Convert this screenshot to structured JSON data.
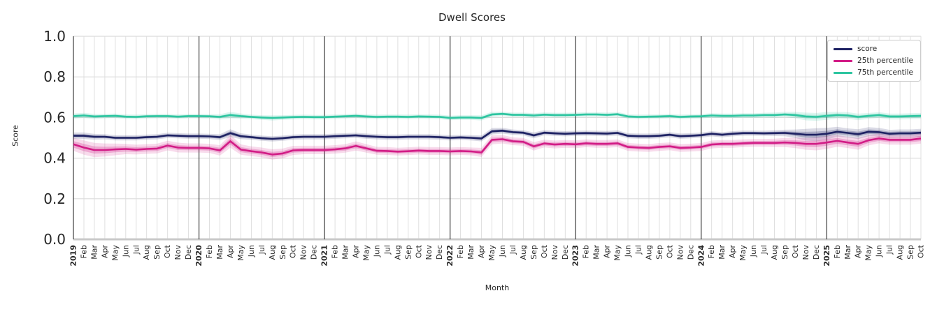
{
  "title": "Dwell Scores",
  "axes": {
    "xlabel": "Month",
    "ylabel": "Score",
    "yticks": [
      "0.0",
      "0.2",
      "0.4",
      "0.6",
      "0.8",
      "1.0"
    ],
    "ylim": [
      0.0,
      1.0
    ]
  },
  "legend": {
    "position": "upper right",
    "items": [
      {
        "label": "score",
        "color": "#1e2263"
      },
      {
        "label": "25th percentile",
        "color": "#d21c86"
      },
      {
        "label": "75th percentile",
        "color": "#2dc5a0"
      }
    ]
  },
  "chart_data": {
    "type": "line",
    "title": "Dwell Scores",
    "xlabel": "Month",
    "ylabel": "Score",
    "ylim": [
      0.0,
      1.0
    ],
    "grid": true,
    "x_range": "2019-01 to 2025-10",
    "tick_labels": [
      "2019",
      "Feb",
      "Mar",
      "Apr",
      "May",
      "Jun",
      "Jul",
      "Aug",
      "Sep",
      "Oct",
      "Nov",
      "Dec",
      "2020",
      "Feb",
      "Mar",
      "Apr",
      "May",
      "Jun",
      "Jul",
      "Aug",
      "Sep",
      "Oct",
      "Nov",
      "Dec",
      "2021",
      "Feb",
      "Mar",
      "Apr",
      "May",
      "Jun",
      "Jul",
      "Aug",
      "Sep",
      "Oct",
      "Nov",
      "Dec",
      "2022",
      "Feb",
      "Mar",
      "Apr",
      "May",
      "Jun",
      "Jul",
      "Aug",
      "Sep",
      "Oct",
      "Nov",
      "Dec",
      "2023",
      "Feb",
      "Mar",
      "Apr",
      "May",
      "Jun",
      "Jul",
      "Aug",
      "Sep",
      "Oct",
      "Nov",
      "Dec",
      "2024",
      "Feb",
      "Mar",
      "Apr",
      "May",
      "Jun",
      "Jul",
      "Aug",
      "Sep",
      "Oct",
      "Nov",
      "Dec",
      "2025",
      "Feb",
      "Mar",
      "Apr",
      "May",
      "Jun",
      "Jul",
      "Aug",
      "Sep",
      "Oct"
    ],
    "series": [
      {
        "name": "score",
        "color": "#1e2263",
        "values": [
          0.51,
          0.51,
          0.505,
          0.505,
          0.5,
          0.5,
          0.5,
          0.503,
          0.505,
          0.512,
          0.51,
          0.508,
          0.508,
          0.507,
          0.503,
          0.523,
          0.508,
          0.503,
          0.498,
          0.495,
          0.498,
          0.503,
          0.505,
          0.505,
          0.505,
          0.508,
          0.51,
          0.512,
          0.508,
          0.505,
          0.503,
          0.503,
          0.505,
          0.505,
          0.505,
          0.503,
          0.5,
          0.502,
          0.5,
          0.497,
          0.532,
          0.535,
          0.528,
          0.525,
          0.512,
          0.525,
          0.522,
          0.52,
          0.522,
          0.523,
          0.522,
          0.521,
          0.524,
          0.51,
          0.508,
          0.508,
          0.51,
          0.515,
          0.508,
          0.51,
          0.513,
          0.52,
          0.515,
          0.52,
          0.523,
          0.523,
          0.522,
          0.523,
          0.524,
          0.52,
          0.515,
          0.515,
          0.52,
          0.53,
          0.524,
          0.518,
          0.53,
          0.528,
          0.52,
          0.522,
          0.522,
          0.525
        ],
        "band": [
          0.01,
          0.01,
          0.009,
          0.008,
          0.008,
          0.008,
          0.008,
          0.008,
          0.008,
          0.008,
          0.008,
          0.008,
          0.008,
          0.008,
          0.009,
          0.012,
          0.009,
          0.008,
          0.008,
          0.008,
          0.008,
          0.008,
          0.008,
          0.008,
          0.008,
          0.008,
          0.008,
          0.008,
          0.008,
          0.008,
          0.008,
          0.008,
          0.008,
          0.008,
          0.008,
          0.008,
          0.008,
          0.008,
          0.008,
          0.009,
          0.01,
          0.009,
          0.008,
          0.008,
          0.009,
          0.008,
          0.008,
          0.008,
          0.008,
          0.008,
          0.008,
          0.008,
          0.008,
          0.008,
          0.008,
          0.008,
          0.008,
          0.008,
          0.008,
          0.008,
          0.008,
          0.008,
          0.008,
          0.008,
          0.008,
          0.008,
          0.008,
          0.009,
          0.01,
          0.013,
          0.018,
          0.02,
          0.018,
          0.015,
          0.014,
          0.015,
          0.014,
          0.013,
          0.012,
          0.012,
          0.012,
          0.012
        ]
      },
      {
        "name": "25th percentile",
        "color": "#d21c86",
        "values": [
          0.468,
          0.452,
          0.44,
          0.44,
          0.443,
          0.445,
          0.442,
          0.445,
          0.447,
          0.462,
          0.452,
          0.45,
          0.45,
          0.448,
          0.438,
          0.483,
          0.442,
          0.434,
          0.428,
          0.418,
          0.423,
          0.438,
          0.44,
          0.44,
          0.44,
          0.443,
          0.448,
          0.46,
          0.448,
          0.436,
          0.435,
          0.432,
          0.434,
          0.437,
          0.435,
          0.435,
          0.433,
          0.435,
          0.433,
          0.428,
          0.49,
          0.493,
          0.483,
          0.48,
          0.458,
          0.472,
          0.467,
          0.47,
          0.468,
          0.473,
          0.47,
          0.47,
          0.473,
          0.455,
          0.452,
          0.45,
          0.455,
          0.458,
          0.45,
          0.452,
          0.455,
          0.467,
          0.47,
          0.47,
          0.473,
          0.475,
          0.475,
          0.475,
          0.477,
          0.475,
          0.47,
          0.47,
          0.477,
          0.485,
          0.477,
          0.47,
          0.488,
          0.497,
          0.49,
          0.49,
          0.49,
          0.497
        ],
        "band": [
          0.02,
          0.022,
          0.022,
          0.02,
          0.018,
          0.016,
          0.015,
          0.015,
          0.015,
          0.015,
          0.015,
          0.014,
          0.014,
          0.014,
          0.016,
          0.02,
          0.016,
          0.015,
          0.015,
          0.016,
          0.015,
          0.014,
          0.013,
          0.013,
          0.013,
          0.013,
          0.013,
          0.014,
          0.013,
          0.012,
          0.012,
          0.012,
          0.012,
          0.012,
          0.012,
          0.012,
          0.012,
          0.012,
          0.012,
          0.014,
          0.014,
          0.013,
          0.012,
          0.012,
          0.013,
          0.012,
          0.012,
          0.012,
          0.012,
          0.012,
          0.012,
          0.012,
          0.012,
          0.012,
          0.012,
          0.012,
          0.012,
          0.012,
          0.012,
          0.012,
          0.012,
          0.012,
          0.012,
          0.012,
          0.012,
          0.012,
          0.012,
          0.013,
          0.014,
          0.016,
          0.018,
          0.02,
          0.02,
          0.018,
          0.017,
          0.018,
          0.016,
          0.015,
          0.015,
          0.015,
          0.015,
          0.016
        ]
      },
      {
        "name": "75th percentile",
        "color": "#2dc5a0",
        "values": [
          0.607,
          0.61,
          0.605,
          0.607,
          0.608,
          0.604,
          0.603,
          0.606,
          0.607,
          0.607,
          0.604,
          0.607,
          0.607,
          0.606,
          0.603,
          0.612,
          0.607,
          0.603,
          0.6,
          0.598,
          0.6,
          0.602,
          0.603,
          0.602,
          0.602,
          0.604,
          0.606,
          0.608,
          0.605,
          0.603,
          0.604,
          0.604,
          0.603,
          0.605,
          0.604,
          0.603,
          0.598,
          0.6,
          0.6,
          0.598,
          0.615,
          0.618,
          0.613,
          0.613,
          0.61,
          0.614,
          0.612,
          0.612,
          0.613,
          0.615,
          0.615,
          0.613,
          0.616,
          0.605,
          0.603,
          0.604,
          0.605,
          0.607,
          0.603,
          0.605,
          0.606,
          0.61,
          0.608,
          0.608,
          0.61,
          0.61,
          0.612,
          0.612,
          0.615,
          0.612,
          0.605,
          0.603,
          0.608,
          0.612,
          0.61,
          0.603,
          0.608,
          0.612,
          0.605,
          0.605,
          0.607,
          0.608
        ],
        "band": [
          0.008,
          0.008,
          0.008,
          0.007,
          0.007,
          0.007,
          0.007,
          0.007,
          0.007,
          0.007,
          0.007,
          0.007,
          0.007,
          0.007,
          0.008,
          0.01,
          0.008,
          0.007,
          0.007,
          0.008,
          0.007,
          0.007,
          0.007,
          0.007,
          0.007,
          0.007,
          0.007,
          0.007,
          0.007,
          0.007,
          0.007,
          0.007,
          0.007,
          0.007,
          0.007,
          0.007,
          0.007,
          0.007,
          0.007,
          0.008,
          0.008,
          0.007,
          0.007,
          0.007,
          0.007,
          0.007,
          0.007,
          0.007,
          0.007,
          0.007,
          0.007,
          0.007,
          0.007,
          0.007,
          0.007,
          0.007,
          0.007,
          0.007,
          0.007,
          0.007,
          0.007,
          0.007,
          0.007,
          0.007,
          0.007,
          0.007,
          0.007,
          0.008,
          0.008,
          0.01,
          0.012,
          0.012,
          0.012,
          0.01,
          0.01,
          0.01,
          0.009,
          0.009,
          0.009,
          0.009,
          0.009,
          0.009
        ]
      }
    ]
  }
}
